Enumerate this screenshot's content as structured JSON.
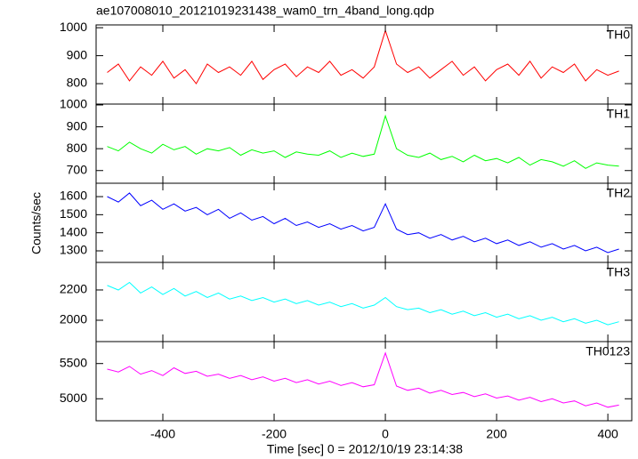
{
  "chart_data": {
    "type": "line",
    "title": "ae107008010_20121019231438_wam0_trn_4band_long.qdp",
    "xlabel": "Time [sec] 0 = 2012/10/19 23:14:38",
    "ylabel": "Counts/sec",
    "xlim": [
      -520,
      443
    ],
    "xticks": [
      -400,
      -200,
      0,
      200,
      400
    ],
    "x": [
      -500,
      -480,
      -460,
      -440,
      -420,
      -400,
      -380,
      -360,
      -340,
      -320,
      -300,
      -280,
      -260,
      -240,
      -220,
      -200,
      -180,
      -160,
      -140,
      -120,
      -100,
      -80,
      -60,
      -40,
      -20,
      0,
      20,
      40,
      60,
      80,
      100,
      120,
      140,
      160,
      180,
      200,
      220,
      240,
      260,
      280,
      300,
      320,
      340,
      360,
      380,
      400,
      420
    ],
    "series": [
      {
        "name": "TH0",
        "color": "#ff0000",
        "ylim": [
          727,
          1010
        ],
        "yticks": [
          800,
          900,
          1000
        ],
        "values": [
          840,
          870,
          810,
          860,
          830,
          880,
          820,
          850,
          800,
          870,
          840,
          860,
          830,
          880,
          815,
          850,
          870,
          825,
          860,
          840,
          880,
          830,
          850,
          820,
          860,
          990,
          870,
          840,
          860,
          820,
          850,
          880,
          830,
          860,
          810,
          850,
          870,
          830,
          880,
          820,
          860,
          840,
          870,
          810,
          850,
          830,
          845
        ]
      },
      {
        "name": "TH1",
        "color": "#00ff00",
        "ylim": [
          642,
          1004
        ],
        "yticks": [
          700,
          800,
          900,
          1000
        ],
        "values": [
          810,
          790,
          830,
          800,
          780,
          820,
          795,
          810,
          775,
          800,
          790,
          805,
          770,
          795,
          780,
          790,
          760,
          785,
          775,
          770,
          790,
          760,
          780,
          765,
          775,
          950,
          800,
          770,
          760,
          780,
          750,
          765,
          740,
          770,
          745,
          755,
          735,
          760,
          725,
          750,
          740,
          720,
          745,
          710,
          735,
          725,
          720
        ]
      },
      {
        "name": "TH2",
        "color": "#0000ff",
        "ylim": [
          1236,
          1674
        ],
        "yticks": [
          1300,
          1400,
          1500,
          1600
        ],
        "values": [
          1600,
          1570,
          1620,
          1550,
          1580,
          1530,
          1560,
          1520,
          1540,
          1500,
          1530,
          1480,
          1510,
          1470,
          1490,
          1450,
          1480,
          1440,
          1460,
          1430,
          1450,
          1420,
          1440,
          1410,
          1430,
          1560,
          1420,
          1390,
          1400,
          1370,
          1390,
          1360,
          1380,
          1350,
          1370,
          1340,
          1360,
          1330,
          1350,
          1320,
          1340,
          1310,
          1330,
          1300,
          1320,
          1290,
          1310
        ]
      },
      {
        "name": "TH3",
        "color": "#00ffff",
        "ylim": [
          1859,
          2382
        ],
        "yticks": [
          2000,
          2200
        ],
        "values": [
          2230,
          2200,
          2250,
          2180,
          2220,
          2170,
          2210,
          2160,
          2190,
          2150,
          2180,
          2140,
          2160,
          2130,
          2150,
          2120,
          2140,
          2110,
          2130,
          2100,
          2120,
          2090,
          2110,
          2080,
          2100,
          2150,
          2090,
          2070,
          2080,
          2050,
          2070,
          2040,
          2060,
          2030,
          2050,
          2020,
          2040,
          2010,
          2030,
          2000,
          2020,
          1990,
          2010,
          1980,
          2000,
          1970,
          1990
        ]
      },
      {
        "name": "TH0123",
        "color": "#ff00ff",
        "ylim": [
          4688,
          5812
        ],
        "yticks": [
          5000,
          5500
        ],
        "values": [
          5420,
          5380,
          5460,
          5350,
          5400,
          5330,
          5440,
          5360,
          5390,
          5320,
          5350,
          5290,
          5330,
          5270,
          5310,
          5250,
          5290,
          5230,
          5270,
          5210,
          5250,
          5190,
          5230,
          5170,
          5200,
          5650,
          5180,
          5120,
          5150,
          5080,
          5120,
          5060,
          5090,
          5030,
          5070,
          5010,
          5040,
          4980,
          5020,
          4960,
          5000,
          4940,
          4970,
          4900,
          4940,
          4880,
          4910
        ]
      }
    ]
  }
}
